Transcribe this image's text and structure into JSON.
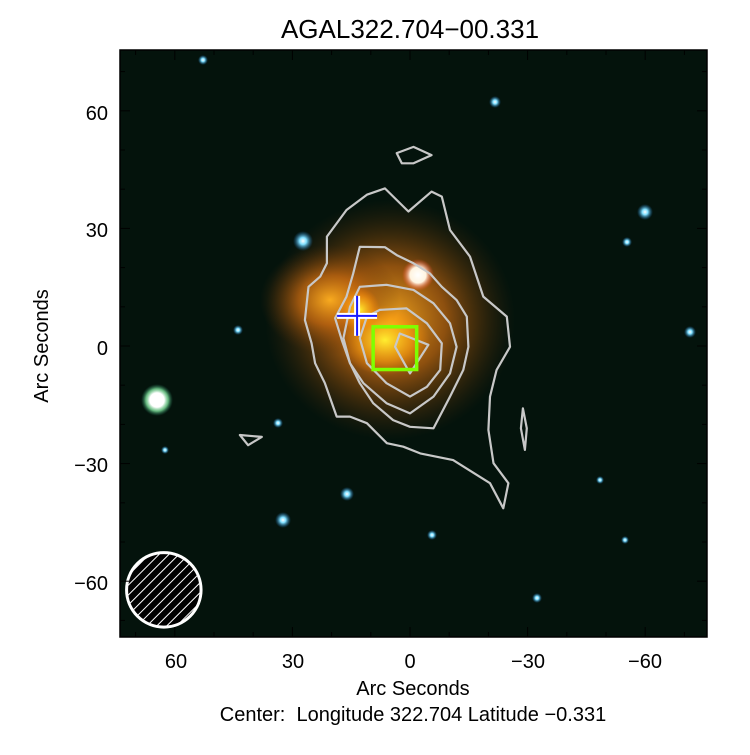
{
  "chart_data": {
    "type": "contour-image",
    "title": "AGAL322.704−00.331",
    "xlabel": "Arc Seconds",
    "ylabel": "Arc Seconds",
    "caption": "Center:  Longitude 322.704 Latitude −0.331",
    "xlim": [
      75,
      -75
    ],
    "ylim": [
      -75,
      75
    ],
    "x_reversed": true,
    "xticks": [
      60,
      30,
      0,
      -30,
      -60
    ],
    "yticks": [
      -60,
      -30,
      0,
      30,
      60
    ],
    "xtick_labels": [
      "60",
      "30",
      "0",
      "−30",
      "−60"
    ],
    "ytick_labels": [
      "−60",
      "−30",
      "0",
      "30",
      "60"
    ],
    "contour_color": "#c8c8c8",
    "contours": [
      [
        [
          6.4,
          40.2
        ],
        [
          0.4,
          34.3
        ],
        [
          -5.5,
          39.4
        ],
        [
          -8.1,
          38.1
        ],
        [
          -10.2,
          29.6
        ],
        [
          -15.3,
          22.8
        ],
        [
          -18.7,
          12.6
        ],
        [
          -24.7,
          7.5
        ],
        [
          -25.5,
          -0.2
        ],
        [
          -22.1,
          -6.1
        ],
        [
          -20.4,
          -12.9
        ],
        [
          -20.0,
          -21.4
        ],
        [
          -21.3,
          -29.9
        ],
        [
          -25.1,
          -35.0
        ],
        [
          -23.8,
          -41.4
        ],
        [
          -20.4,
          -35.0
        ],
        [
          -11.0,
          -29.1
        ],
        [
          -2.6,
          -27.4
        ],
        [
          1.7,
          -25.7
        ],
        [
          5.9,
          -24.8
        ],
        [
          11.0,
          -19.7
        ],
        [
          15.3,
          -18.0
        ],
        [
          18.7,
          -18.0
        ],
        [
          21.7,
          -9.5
        ],
        [
          24.2,
          -4.4
        ],
        [
          25.1,
          0.7
        ],
        [
          26.8,
          6.6
        ],
        [
          25.9,
          15.1
        ],
        [
          22.9,
          17.7
        ],
        [
          21.2,
          21.1
        ],
        [
          21.2,
          27.9
        ],
        [
          16.2,
          34.7
        ],
        [
          11.0,
          38.6
        ]
      ],
      [
        [
          12.8,
          25.3
        ],
        [
          6.4,
          25.2
        ],
        [
          3.4,
          23.2
        ],
        [
          -0.9,
          21.1
        ],
        [
          -5.1,
          18.5
        ],
        [
          -8.1,
          15.1
        ],
        [
          -11.9,
          11.7
        ],
        [
          -14.5,
          7.5
        ],
        [
          -14.9,
          -0.2
        ],
        [
          -13.6,
          -6.1
        ],
        [
          -10.2,
          -12.9
        ],
        [
          -6.0,
          -21.0
        ],
        [
          0,
          -20.6
        ],
        [
          4.3,
          -18.9
        ],
        [
          9.4,
          -14.6
        ],
        [
          12.8,
          -9.5
        ],
        [
          15.3,
          -4.4
        ],
        [
          17.4,
          1.5
        ],
        [
          19.1,
          7.1
        ],
        [
          16.2,
          12.6
        ],
        [
          14.5,
          18.5
        ]
      ],
      [
        [
          12.8,
          15.1
        ],
        [
          6.0,
          15.6
        ],
        [
          -0.9,
          14.3
        ],
        [
          -6.0,
          10.9
        ],
        [
          -10.2,
          5.8
        ],
        [
          -11.9,
          -0.2
        ],
        [
          -10.2,
          -7.0
        ],
        [
          -6.0,
          -12.9
        ],
        [
          0,
          -17.2
        ],
        [
          6.0,
          -14.6
        ],
        [
          11.9,
          -9.5
        ],
        [
          15.3,
          -4.4
        ],
        [
          17.0,
          2.0
        ],
        [
          15.3,
          10.0
        ]
      ],
      [
        [
          7.7,
          9.2
        ],
        [
          0.9,
          9.6
        ],
        [
          -4.3,
          5.8
        ],
        [
          -8.1,
          0.7
        ],
        [
          -7.7,
          -6.1
        ],
        [
          -4.3,
          -10.4
        ],
        [
          0,
          -12.9
        ],
        [
          6.0,
          -9.5
        ],
        [
          11.0,
          -4.4
        ],
        [
          12.8,
          2.0
        ],
        [
          11.0,
          7.5
        ]
      ],
      [
        [
          2.6,
          3.2
        ],
        [
          -4.7,
          0.3
        ],
        [
          0,
          -7.0
        ],
        [
          3.8,
          -0.2
        ]
      ],
      [
        [
          3.4,
          49.2
        ],
        [
          -0.9,
          50.8
        ],
        [
          -5.5,
          48.7
        ],
        [
          -0.9,
          46.6
        ],
        [
          2.1,
          46.6
        ]
      ],
      [
        [
          43.4,
          -22.7
        ],
        [
          37.8,
          -23.2
        ],
        [
          41.3,
          -25.3
        ]
      ],
      [
        [
          -28.8,
          -15.9
        ],
        [
          -29.8,
          -21.0
        ],
        [
          -29.3,
          -26.5
        ],
        [
          -28.3,
          -21.0
        ]
      ]
    ],
    "markers": [
      {
        "shape": "cross",
        "x": 13.5,
        "y": 7.7,
        "color": "#1a1aff"
      },
      {
        "shape": "square",
        "x": [
          9.4,
          -1.7
        ],
        "y": [
          4.9,
          -6.0
        ],
        "color": "#7fff00"
      }
    ],
    "beam": {
      "x": 62.8,
      "y": -62.2,
      "diameter": 19,
      "color": "#ffffff",
      "fill": "hatched"
    }
  }
}
